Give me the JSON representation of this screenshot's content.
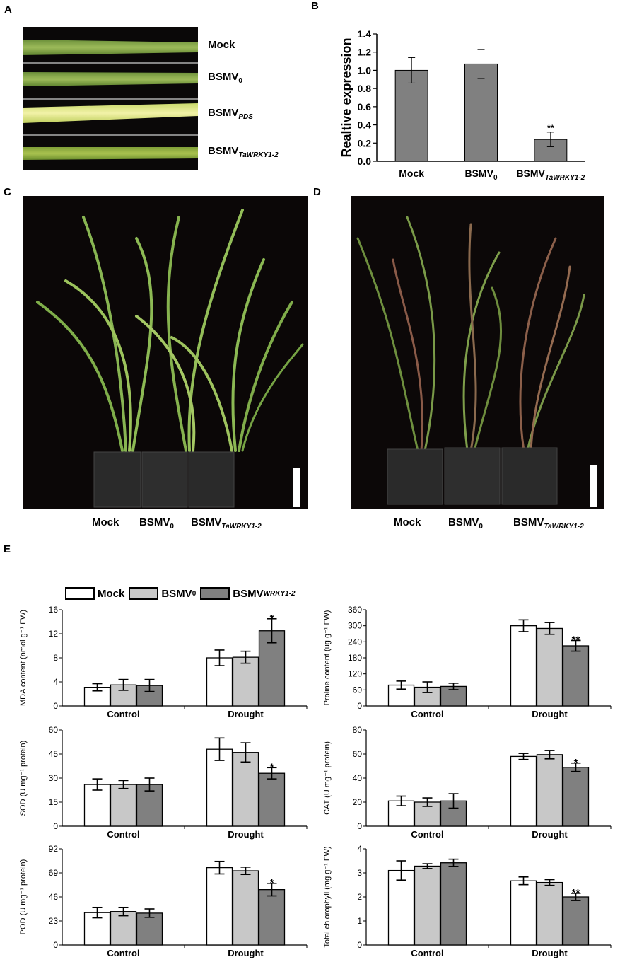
{
  "panels": {
    "A": "A",
    "B": "B",
    "C": "C",
    "D": "D",
    "E": "E"
  },
  "panelA": {
    "labels": [
      {
        "main": "Mock",
        "sub": ""
      },
      {
        "main": "BSMV",
        "sub": "0"
      },
      {
        "main": "BSMV",
        "sub": "PDS"
      },
      {
        "main": "BSMV",
        "sub": "TaWRKY1-2"
      }
    ]
  },
  "panelC": {
    "captions": [
      {
        "main": "Mock",
        "sub": ""
      },
      {
        "main": "BSMV",
        "sub": "0"
      },
      {
        "main": "BSMV",
        "sub": "TaWRKY1-2"
      }
    ]
  },
  "panelD": {
    "captions": [
      {
        "main": "Mock",
        "sub": ""
      },
      {
        "main": "BSMV",
        "sub": "0"
      },
      {
        "main": "BSMV",
        "sub": "TaWRKY1-2"
      }
    ]
  },
  "legend": {
    "items": [
      {
        "main": "Mock",
        "sub": "",
        "color": "#ffffff"
      },
      {
        "main": "BSMV",
        "sub": "0",
        "color": "#c8c8c8"
      },
      {
        "main": "BSMV",
        "sub": "WRKY1-2",
        "color": "#808080"
      }
    ]
  },
  "chart_data": [
    {
      "type": "bar",
      "panel": "B",
      "categories": [
        "Mock",
        "BSMV0",
        "BSMVTaWRKY1-2"
      ],
      "category_labels": [
        {
          "main": "Mock",
          "sub": ""
        },
        {
          "main": "BSMV",
          "sub": "0"
        },
        {
          "main": "BSMV",
          "sub": "TaWRKY1-2"
        }
      ],
      "values": [
        1.0,
        1.07,
        0.24
      ],
      "errors": [
        0.14,
        0.16,
        0.08
      ],
      "annotations": [
        "",
        "",
        "**"
      ],
      "ylabel": "Realtive expression",
      "ylim": [
        0,
        1.4
      ],
      "yticks": [
        "0.0",
        "0.2",
        "0.4",
        "0.6",
        "0.8",
        "1.0",
        "1.2",
        "1.4"
      ],
      "color": "#808080"
    },
    {
      "type": "bar",
      "id": "mda",
      "categories": [
        "Control",
        "Drought"
      ],
      "series": [
        {
          "name": "Mock",
          "values": [
            3.1,
            8.0
          ],
          "errors": [
            0.6,
            1.3
          ]
        },
        {
          "name": "BSMV0",
          "values": [
            3.5,
            8.1
          ],
          "errors": [
            0.9,
            1.0
          ]
        },
        {
          "name": "BSMVWRKY1-2",
          "values": [
            3.4,
            12.5
          ],
          "errors": [
            1.0,
            2.0
          ]
        }
      ],
      "annotations": [
        [
          "",
          "",
          ""
        ],
        [
          "",
          "",
          "*"
        ]
      ],
      "ylabel": "MDA content (nmol g⁻¹ FW)",
      "ylim": [
        0,
        16
      ],
      "yticks": [
        "0",
        "4",
        "8",
        "12",
        "16"
      ]
    },
    {
      "type": "bar",
      "id": "proline",
      "categories": [
        "Control",
        "Drought"
      ],
      "series": [
        {
          "name": "Mock",
          "values": [
            78,
            300
          ],
          "errors": [
            15,
            22
          ]
        },
        {
          "name": "BSMV0",
          "values": [
            70,
            290
          ],
          "errors": [
            20,
            22
          ]
        },
        {
          "name": "BSMVWRKY1-2",
          "values": [
            73,
            225
          ],
          "errors": [
            12,
            20
          ]
        }
      ],
      "annotations": [
        [
          "",
          "",
          ""
        ],
        [
          "",
          "",
          "**"
        ]
      ],
      "ylabel": "Proline content (ug g⁻¹ FW)",
      "ylim": [
        0,
        360
      ],
      "yticks": [
        "0",
        "60",
        "120",
        "180",
        "240",
        "300",
        "360"
      ]
    },
    {
      "type": "bar",
      "id": "sod",
      "categories": [
        "Control",
        "Drought"
      ],
      "series": [
        {
          "name": "Mock",
          "values": [
            26,
            48
          ],
          "errors": [
            3.5,
            7
          ]
        },
        {
          "name": "BSMV0",
          "values": [
            26,
            46
          ],
          "errors": [
            2.5,
            6
          ]
        },
        {
          "name": "BSMVWRKY1-2",
          "values": [
            26,
            33
          ],
          "errors": [
            4,
            3.5
          ]
        }
      ],
      "annotations": [
        [
          "",
          "",
          ""
        ],
        [
          "",
          "",
          "*"
        ]
      ],
      "ylabel": "SOD (U mg⁻¹ protein)",
      "ylim": [
        0,
        60
      ],
      "yticks": [
        "0",
        "15",
        "30",
        "45",
        "60"
      ]
    },
    {
      "type": "bar",
      "id": "cat",
      "categories": [
        "Control",
        "Drought"
      ],
      "series": [
        {
          "name": "Mock",
          "values": [
            21,
            58
          ],
          "errors": [
            4,
            2.5
          ]
        },
        {
          "name": "BSMV0",
          "values": [
            20,
            59.5
          ],
          "errors": [
            3.5,
            3.5
          ]
        },
        {
          "name": "BSMVWRKY1-2",
          "values": [
            21,
            49
          ],
          "errors": [
            6,
            3.5
          ]
        }
      ],
      "annotations": [
        [
          "",
          "",
          ""
        ],
        [
          "",
          "",
          "*"
        ]
      ],
      "ylabel": "CAT (U mg⁻¹ protein)",
      "ylim": [
        0,
        80
      ],
      "yticks": [
        "0",
        "20",
        "40",
        "60",
        "80"
      ]
    },
    {
      "type": "bar",
      "id": "pod",
      "categories": [
        "Control",
        "Drought"
      ],
      "series": [
        {
          "name": "Mock",
          "values": [
            31,
            74
          ],
          "errors": [
            5,
            6
          ]
        },
        {
          "name": "BSMV0",
          "values": [
            32,
            71
          ],
          "errors": [
            4,
            3.5
          ]
        },
        {
          "name": "BSMVWRKY1-2",
          "values": [
            30.5,
            53
          ],
          "errors": [
            4,
            6
          ]
        }
      ],
      "annotations": [
        [
          "",
          "",
          ""
        ],
        [
          "",
          "",
          "*"
        ]
      ],
      "ylabel": "POD (U mg⁻¹ protein)",
      "ylim": [
        0,
        92
      ],
      "yticks": [
        "0",
        "23",
        "46",
        "69",
        "92"
      ]
    },
    {
      "type": "bar",
      "id": "chl",
      "categories": [
        "Control",
        "Drought"
      ],
      "series": [
        {
          "name": "Mock",
          "values": [
            3.1,
            2.67
          ],
          "errors": [
            0.4,
            0.16
          ]
        },
        {
          "name": "BSMV0",
          "values": [
            3.28,
            2.6
          ],
          "errors": [
            0.1,
            0.12
          ]
        },
        {
          "name": "BSMVWRKY1-2",
          "values": [
            3.42,
            2.0
          ],
          "errors": [
            0.15,
            0.15
          ]
        }
      ],
      "annotations": [
        [
          "",
          "",
          ""
        ],
        [
          "",
          "",
          "**"
        ]
      ],
      "ylabel": "Total chlorophyll (mg g⁻¹ FW)",
      "ylim": [
        0,
        4
      ],
      "yticks": [
        "0",
        "1",
        "2",
        "3",
        "4"
      ]
    }
  ]
}
